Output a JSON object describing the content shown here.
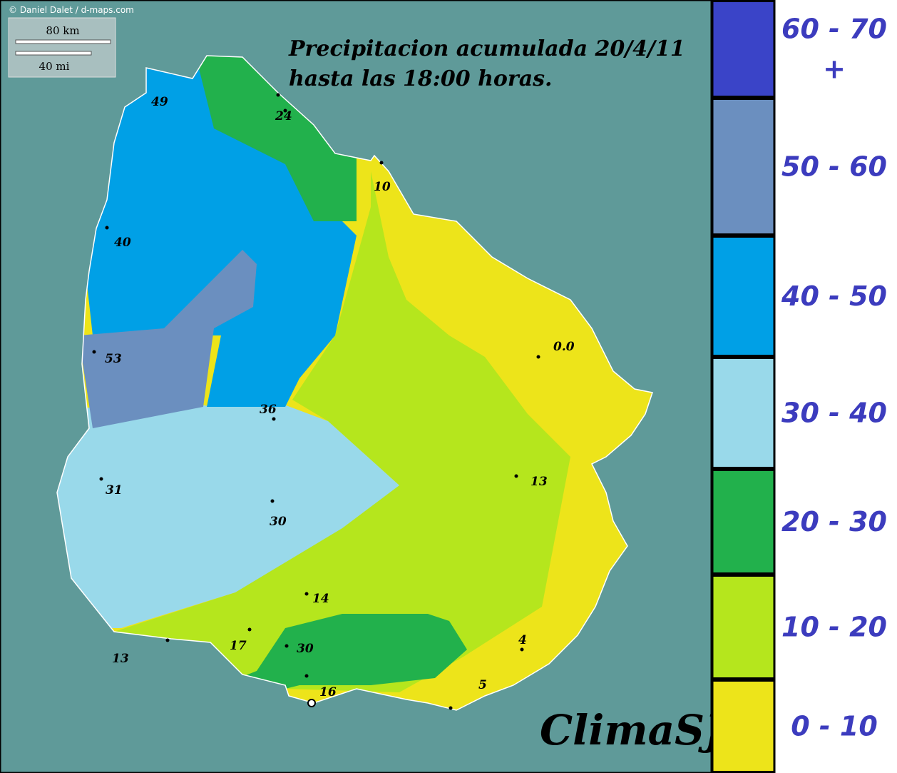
{
  "credit": "© Daniel Dalet / d-maps.com",
  "scale": {
    "km": "80 km",
    "mi": "40 mi"
  },
  "title": [
    "Precipitacion acumulada 20/4/11",
    "hasta las 18:00 horas."
  ],
  "stations": [
    "49",
    "24",
    "10",
    "40",
    "0.0",
    "53",
    "36",
    "31",
    "30",
    "13",
    "14",
    "17",
    "30",
    "16",
    "4",
    "5",
    "13"
  ],
  "legend": [
    {
      "label": "60 - 70\n+",
      "color": "#3a44c8"
    },
    {
      "label": "50 - 60",
      "color": "#6b8fbf"
    },
    {
      "label": "40 - 50",
      "color": "#00a0e6"
    },
    {
      "label": "30 - 40",
      "color": "#99d9ea"
    },
    {
      "label": "20 - 30",
      "color": "#22b14c"
    },
    {
      "label": "10 - 20",
      "color": "#b5e61d"
    },
    {
      "label": "0 - 10",
      "color": "#ede41a"
    }
  ],
  "brand": "ClimaSJ"
}
